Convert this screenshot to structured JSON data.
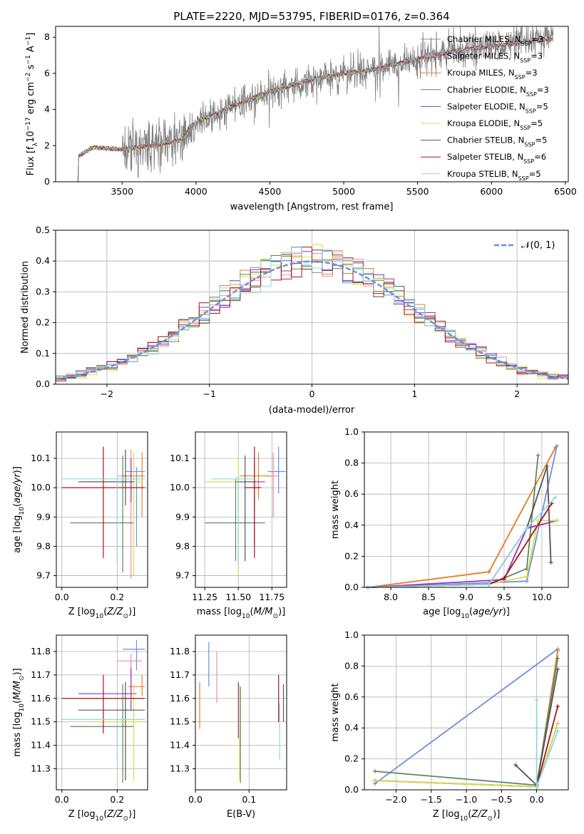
{
  "title": "PLATE=2220, MJD=53795, FIBERID=0176, z=0.364",
  "colors": {
    "Chabrier MILES": "#6f8fdc",
    "Salpeter MILES": "#f08aa7",
    "Kroupa MILES": "#e38224",
    "Chabrier ELODIE": "#5c8a5c",
    "Salpeter ELODIE": "#9b30c2",
    "Kroupa ELODIE": "#d4e04c",
    "Chabrier STELIB": "#555555",
    "Salpeter STELIB": "#a31515",
    "Kroupa STELIB": "#8fd8e0",
    "Data": "#808080",
    "Normal": "#6f8fdc"
  },
  "spectrum": {
    "xlabel": "wavelength [Angstrom, rest frame]",
    "ylabel_parts": [
      "Flux [f",
      "λ",
      "10",
      "−17",
      " erg cm",
      "−2",
      " s",
      "−1",
      " A",
      "−1",
      "]"
    ],
    "xticks": [
      "3500",
      "4000",
      "4500",
      "5000",
      "5500",
      "6000",
      "6500"
    ],
    "yticks": [
      "0",
      "2",
      "4",
      "6",
      "8"
    ],
    "legend": [
      {
        "name": "Chabrier MILES",
        "pre": "Chabrier MILES, N",
        "n": "3"
      },
      {
        "name": "Salpeter MILES",
        "pre": "Salpeter MILES, N",
        "n": "3"
      },
      {
        "name": "Kroupa MILES",
        "pre": "Kroupa MILES, N",
        "n": "3"
      },
      {
        "name": "Chabrier ELODIE",
        "pre": "Chabrier ELODIE, N",
        "n": "3"
      },
      {
        "name": "Salpeter ELODIE",
        "pre": "Salpeter ELODIE, N",
        "n": "5"
      },
      {
        "name": "Kroupa ELODIE",
        "pre": "Kroupa ELODIE, N",
        "n": "5"
      },
      {
        "name": "Chabrier STELIB",
        "pre": "Chabrier STELIB, N",
        "n": "5"
      },
      {
        "name": "Salpeter STELIB",
        "pre": "Salpeter STELIB, N",
        "n": "6"
      },
      {
        "name": "Kroupa STELIB",
        "pre": "Kroupa STELIB, N",
        "n": "5"
      }
    ],
    "legend_sub": "SSP"
  },
  "residuals": {
    "xlabel": "(data-model)/error",
    "ylabel": "Normed distribution",
    "xticks": [
      "−2",
      "−1",
      "0",
      "1",
      "2"
    ],
    "yticks": [
      "0.0",
      "0.1",
      "0.2",
      "0.3",
      "0.4",
      "0.5"
    ],
    "legend": "𝒩(0, 1)"
  },
  "panels": {
    "age_ylabel": "age  [log10(age/yr)]",
    "mass_ylabel": "mass [log10(M/M⊙)]",
    "z_xlabel": "Z [log10(Z/Z⊙)]",
    "mass_xlabel": "mass [log10(M/M⊙)]",
    "ebv_xlabel": "E(B-V)",
    "age_xlabel": "age  [log10(age/yr)]",
    "weight_ylabel": "mass weight",
    "z_ticks": [
      "0.0",
      "0.2"
    ],
    "mass_ticks": [
      "11.25",
      "11.50",
      "11.75"
    ],
    "age_ticks": [
      "9.7",
      "9.8",
      "9.9",
      "10.0",
      "10.1"
    ],
    "massy_ticks": [
      "11.3",
      "11.4",
      "11.5",
      "11.6",
      "11.7",
      "11.8"
    ],
    "ebv_ticks": [
      "0.0",
      "0.1"
    ],
    "agex_ticks": [
      "8.0",
      "8.5",
      "9.0",
      "9.5",
      "10.0"
    ],
    "w_ticks": [
      "0.0",
      "0.2",
      "0.4",
      "0.6",
      "0.8",
      "1.0"
    ],
    "zx_ticks": [
      "−2.0",
      "−1.5",
      "−1.0",
      "−0.5",
      "0.0"
    ]
  },
  "chart_data": [
    {
      "type": "line",
      "title": "PLATE=2220, MJD=53795, FIBERID=0176, z=0.364",
      "xlabel": "wavelength [Angstrom, rest frame]",
      "ylabel": "Flux [fλ10−17 erg cm−2 s−1 A−1]",
      "xlim": [
        3050,
        6520
      ],
      "ylim": [
        0,
        8.6
      ],
      "series_note": "Observed spectrum (grey) with 9 SSP model fits overlaid",
      "continuum": {
        "x": [
          3200,
          3300,
          3500,
          3700,
          3900,
          3950,
          4000,
          4200,
          4500,
          4800,
          5000,
          5200,
          5500,
          5800,
          6100,
          6400
        ],
        "y": [
          1.4,
          1.9,
          1.8,
          2.0,
          2.3,
          2.9,
          3.3,
          4.0,
          5.0,
          5.7,
          6.0,
          6.2,
          6.8,
          7.3,
          7.6,
          7.9
        ]
      },
      "noise_start": 3500,
      "legend": [
        "Chabrier MILES, NSSP=3",
        "Salpeter MILES, NSSP=3",
        "Kroupa MILES, NSSP=3",
        "Chabrier ELODIE, NSSP=3",
        "Salpeter ELODIE, NSSP=5",
        "Kroupa ELODIE, NSSP=5",
        "Chabrier STELIB, NSSP=5",
        "Salpeter STELIB, NSSP=6",
        "Kroupa STELIB, NSSP=5"
      ]
    },
    {
      "type": "bar",
      "xlabel": "(data-model)/error",
      "ylabel": "Normed distribution",
      "xlim": [
        -2.5,
        2.5
      ],
      "ylim": [
        0,
        0.5
      ],
      "bin_width": 0.1,
      "bin_start": -2.5,
      "normal_curve": {
        "name": "𝒩(0, 1)",
        "mean": 0,
        "sigma": 1
      },
      "series_note": "9 step histograms, one per model, approximating a unit normal"
    },
    {
      "type": "scatter",
      "panel": "age-vs-Z",
      "xlabel": "Z [log10(Z/Z⊙)]",
      "ylabel": "age  [log10(age/yr)]",
      "xlim": [
        -0.02,
        0.31
      ],
      "ylim": [
        9.66,
        10.19
      ],
      "points": [
        {
          "model": "Chabrier MILES",
          "x": 0.27,
          "y": 10.055,
          "xerr": [
            0.23,
            0.3
          ],
          "yerr": [
            9.8,
            10.07
          ]
        },
        {
          "model": "Salpeter MILES",
          "x": 0.25,
          "y": 10.04,
          "xerr": [
            0.2,
            0.29
          ],
          "yerr": [
            9.69,
            10.13
          ]
        },
        {
          "model": "Kroupa MILES",
          "x": 0.29,
          "y": 10.04,
          "xerr": [
            0.22,
            0.3
          ],
          "yerr": [
            9.9,
            10.12
          ]
        },
        {
          "model": "Chabrier ELODIE",
          "x": 0.22,
          "y": 9.88,
          "xerr": [
            0.03,
            0.26
          ],
          "yerr": [
            9.71,
            10.11
          ]
        },
        {
          "model": "Salpeter ELODIE",
          "x": 0.25,
          "y": 10.02,
          "xerr": [
            0.07,
            0.27
          ],
          "yerr": [
            9.95,
            10.1
          ]
        },
        {
          "model": "Kroupa ELODIE",
          "x": 0.26,
          "y": 10.02,
          "xerr": [
            0.11,
            0.29
          ],
          "yerr": [
            9.7,
            10.12
          ]
        },
        {
          "model": "Chabrier STELIB",
          "x": 0.23,
          "y": 10.02,
          "xerr": [
            0.06,
            0.26
          ],
          "yerr": [
            9.94,
            10.13
          ]
        },
        {
          "model": "Salpeter STELIB",
          "x": 0.15,
          "y": 10.0,
          "xerr": [
            0.0,
            0.3
          ],
          "yerr": [
            9.76,
            10.14
          ]
        },
        {
          "model": "Kroupa STELIB",
          "x": 0.2,
          "y": 10.03,
          "xerr": [
            0.0,
            0.3
          ],
          "yerr": [
            9.74,
            10.04
          ]
        }
      ]
    },
    {
      "type": "scatter",
      "panel": "age-vs-mass",
      "xlabel": "mass [log10(M/M⊙)]",
      "ylabel": "",
      "xlim": [
        11.18,
        11.86
      ],
      "ylim": [
        9.66,
        10.19
      ],
      "points": [
        {
          "model": "Chabrier MILES",
          "x": 11.8,
          "y": 10.055,
          "xerr": [
            11.72,
            11.85
          ],
          "yerr": [
            9.98,
            10.14
          ]
        },
        {
          "model": "Salpeter MILES",
          "x": 11.76,
          "y": 10.04,
          "xerr": [
            11.71,
            11.8
          ],
          "yerr": [
            9.9,
            10.12
          ]
        },
        {
          "model": "Kroupa MILES",
          "x": 11.65,
          "y": 10.04,
          "xerr": [
            11.51,
            11.74
          ],
          "yerr": [
            9.96,
            10.12
          ]
        },
        {
          "model": "Chabrier ELODIE",
          "x": 11.48,
          "y": 9.88,
          "xerr": [
            11.25,
            11.7
          ],
          "yerr": [
            9.75,
            10.03
          ]
        },
        {
          "model": "Salpeter ELODIE",
          "x": 11.62,
          "y": 10.02,
          "xerr": [
            11.55,
            11.7
          ],
          "yerr": [
            9.8,
            10.1
          ]
        },
        {
          "model": "Kroupa ELODIE",
          "x": 11.5,
          "y": 10.02,
          "xerr": [
            11.25,
            11.55
          ],
          "yerr": [
            9.7,
            10.1
          ]
        },
        {
          "model": "Chabrier STELIB",
          "x": 11.55,
          "y": 10.02,
          "xerr": [
            11.48,
            11.63
          ],
          "yerr": [
            9.75,
            10.11
          ]
        },
        {
          "model": "Salpeter STELIB",
          "x": 11.62,
          "y": 10.0,
          "xerr": [
            11.55,
            11.67
          ],
          "yerr": [
            9.76,
            10.14
          ]
        },
        {
          "model": "Kroupa STELIB",
          "x": 11.5,
          "y": 10.03,
          "xerr": [
            11.3,
            11.62
          ],
          "yerr": [
            9.74,
            10.04
          ]
        }
      ]
    },
    {
      "type": "line",
      "panel": "weight-vs-age",
      "xlabel": "age  [log10(age/yr)]",
      "ylabel": "mass weight",
      "xlim": [
        7.65,
        10.35
      ],
      "ylim": [
        0,
        1
      ],
      "series": [
        {
          "name": "Chabrier MILES",
          "x": [
            7.7,
            9.3,
            9.8,
            10.2
          ],
          "y": [
            0.0,
            0.03,
            0.04,
            0.91
          ]
        },
        {
          "name": "Salpeter MILES",
          "x": [
            7.7,
            9.3,
            10.18
          ],
          "y": [
            0.0,
            0.1,
            0.9
          ]
        },
        {
          "name": "Kroupa MILES",
          "x": [
            7.7,
            9.3,
            10.18
          ],
          "y": [
            0.0,
            0.1,
            0.9
          ]
        },
        {
          "name": "Chabrier ELODIE",
          "x": [
            7.7,
            9.3,
            9.8,
            9.95
          ],
          "y": [
            0.0,
            0.02,
            0.12,
            0.85
          ]
        },
        {
          "name": "Salpeter ELODIE",
          "x": [
            7.7,
            9.5,
            9.8,
            10.2
          ],
          "y": [
            0.0,
            0.05,
            0.38,
            0.43
          ]
        },
        {
          "name": "Kroupa ELODIE",
          "x": [
            7.7,
            9.3,
            9.8,
            9.95,
            10.2
          ],
          "y": [
            0.0,
            0.02,
            0.07,
            0.43,
            0.43
          ]
        },
        {
          "name": "Chabrier STELIB",
          "x": [
            7.7,
            9.3,
            9.8,
            10.07,
            10.12
          ],
          "y": [
            0.0,
            0.02,
            0.38,
            0.78,
            0.16
          ]
        },
        {
          "name": "Salpeter STELIB",
          "x": [
            7.7,
            9.3,
            9.5,
            10.13
          ],
          "y": [
            0.0,
            0.02,
            0.06,
            0.54
          ]
        },
        {
          "name": "Kroupa STELIB",
          "x": [
            7.7,
            9.3,
            9.8,
            10.18
          ],
          "y": [
            0.0,
            0.02,
            0.38,
            0.58
          ]
        }
      ]
    },
    {
      "type": "scatter",
      "panel": "mass-vs-Z",
      "xlabel": "Z [log10(Z/Z⊙)]",
      "ylabel": "mass [log10(M/M⊙)]",
      "xlim": [
        -0.02,
        0.31
      ],
      "ylim": [
        11.21,
        11.87
      ],
      "points": [
        {
          "model": "Chabrier MILES",
          "x": 0.27,
          "y": 11.81,
          "xerr": [
            0.22,
            0.3
          ],
          "yerr": [
            11.72,
            11.85
          ]
        },
        {
          "model": "Salpeter MILES",
          "x": 0.25,
          "y": 11.76,
          "xerr": [
            0.2,
            0.29
          ],
          "yerr": [
            11.6,
            11.79
          ]
        },
        {
          "model": "Kroupa MILES",
          "x": 0.29,
          "y": 11.65,
          "xerr": [
            0.24,
            0.3
          ],
          "yerr": [
            11.61,
            11.7
          ]
        },
        {
          "model": "Chabrier ELODIE",
          "x": 0.22,
          "y": 11.48,
          "xerr": [
            0.03,
            0.26
          ],
          "yerr": [
            11.24,
            11.66
          ]
        },
        {
          "model": "Salpeter ELODIE",
          "x": 0.25,
          "y": 11.62,
          "xerr": [
            0.06,
            0.27
          ],
          "yerr": [
            11.55,
            11.73
          ]
        },
        {
          "model": "Kroupa ELODIE",
          "x": 0.26,
          "y": 11.5,
          "xerr": [
            0.11,
            0.29
          ],
          "yerr": [
            11.25,
            11.66
          ]
        },
        {
          "model": "Chabrier STELIB",
          "x": 0.23,
          "y": 11.55,
          "xerr": [
            0.06,
            0.3
          ],
          "yerr": [
            11.25,
            11.67
          ]
        },
        {
          "model": "Salpeter STELIB",
          "x": 0.15,
          "y": 11.6,
          "xerr": [
            0.0,
            0.3
          ],
          "yerr": [
            11.45,
            11.7
          ]
        },
        {
          "model": "Kroupa STELIB",
          "x": 0.2,
          "y": 11.51,
          "xerr": [
            0.0,
            0.3
          ],
          "yerr": [
            11.33,
            11.51
          ]
        }
      ]
    },
    {
      "type": "scatter",
      "panel": "mass-vs-EBV",
      "xlabel": "E(B-V)",
      "ylabel": "",
      "xlim": [
        0.0,
        0.17
      ],
      "ylim": [
        11.21,
        11.87
      ],
      "points": [
        {
          "model": "Chabrier MILES",
          "x": 0.025,
          "y": 11.75,
          "yerr": [
            11.65,
            11.84
          ]
        },
        {
          "model": "Salpeter MILES",
          "x": 0.04,
          "y": 11.72,
          "yerr": [
            11.58,
            11.8
          ]
        },
        {
          "model": "Kroupa MILES",
          "x": 0.008,
          "y": 11.57,
          "yerr": [
            11.47,
            11.67
          ]
        },
        {
          "model": "Chabrier ELODIE",
          "x": 0.084,
          "y": 11.5,
          "yerr": [
            11.24,
            11.65
          ]
        },
        {
          "model": "Salpeter ELODIE",
          "x": 0.08,
          "y": 11.55,
          "yerr": [
            11.43,
            11.67
          ]
        },
        {
          "model": "Kroupa ELODIE",
          "x": 0.082,
          "y": 11.5,
          "yerr": [
            11.25,
            11.66
          ]
        },
        {
          "model": "Chabrier STELIB",
          "x": 0.164,
          "y": 11.6,
          "yerr": [
            11.5,
            11.66
          ]
        },
        {
          "model": "Salpeter STELIB",
          "x": 0.155,
          "y": 11.6,
          "yerr": [
            11.5,
            11.7
          ]
        },
        {
          "model": "Kroupa STELIB",
          "x": 0.157,
          "y": 11.47,
          "yerr": [
            11.34,
            11.58
          ]
        }
      ]
    },
    {
      "type": "line",
      "panel": "weight-vs-Z",
      "xlabel": "Z [log10(Z/Z⊙)]",
      "ylabel": "mass weight",
      "xlim": [
        -2.45,
        0.45
      ],
      "ylim": [
        0,
        1
      ],
      "series": [
        {
          "name": "Chabrier MILES",
          "x": [
            -2.3,
            0.3
          ],
          "y": [
            0.04,
            0.91
          ]
        },
        {
          "name": "Salpeter MILES",
          "x": [
            -2.3,
            0.0,
            0.3
          ],
          "y": [
            0.06,
            0.02,
            0.9
          ]
        },
        {
          "name": "Kroupa MILES",
          "x": [
            -2.3,
            0.0,
            0.3
          ],
          "y": [
            0.06,
            0.02,
            0.9
          ]
        },
        {
          "name": "Chabrier ELODIE",
          "x": [
            -2.3,
            0.0,
            0.3
          ],
          "y": [
            0.12,
            0.03,
            0.85
          ]
        },
        {
          "name": "Salpeter ELODIE",
          "x": [
            -2.3,
            0.0,
            0.3
          ],
          "y": [
            0.06,
            0.02,
            0.43
          ]
        },
        {
          "name": "Kroupa ELODIE",
          "x": [
            -2.3,
            0.0,
            0.3
          ],
          "y": [
            0.06,
            0.02,
            0.43
          ]
        },
        {
          "name": "Chabrier STELIB",
          "x": [
            -0.3,
            0.0,
            0.3
          ],
          "y": [
            0.16,
            0.03,
            0.78
          ]
        },
        {
          "name": "Salpeter STELIB",
          "x": [
            0.0,
            0.3
          ],
          "y": [
            0.02,
            0.54
          ]
        },
        {
          "name": "Kroupa STELIB",
          "x": [
            0.0,
            0.0,
            0.3
          ],
          "y": [
            0.58,
            0.02,
            0.38
          ]
        }
      ]
    }
  ]
}
